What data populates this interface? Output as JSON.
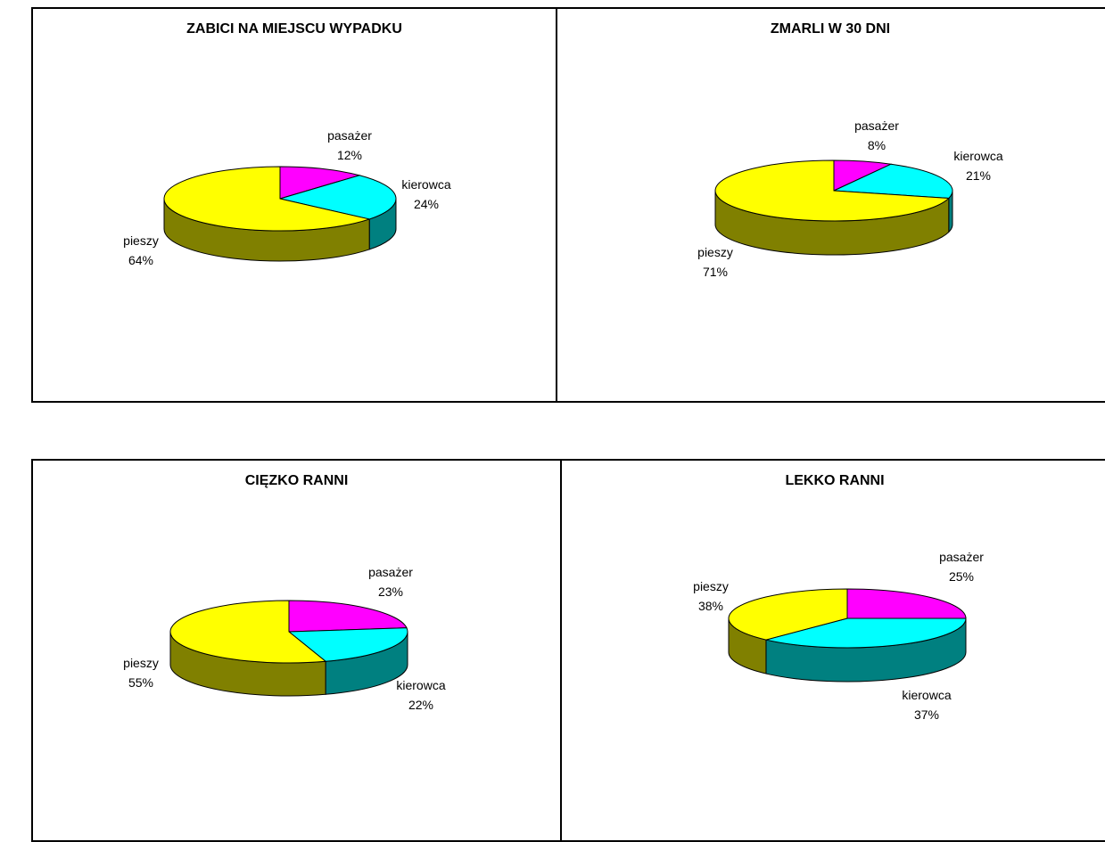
{
  "colors": {
    "pasazer": "#ff00ff",
    "kierowca": "#00ffff",
    "pieszy": "#ffff00",
    "pasazer_side": "#800080",
    "kierowca_side": "#008080",
    "pieszy_side": "#808000"
  },
  "chart_data": [
    {
      "type": "pie",
      "title": "ZABICI NA MIEJSCU WYPADKU",
      "categories": [
        "pasażer",
        "kierowca",
        "pieszy"
      ],
      "values": [
        12,
        24,
        64
      ],
      "labels": [
        "12%",
        "24%",
        "64%"
      ]
    },
    {
      "type": "pie",
      "title": "ZMARLI W 30 DNI",
      "categories": [
        "pasażer",
        "kierowca",
        "pieszy"
      ],
      "values": [
        8,
        21,
        71
      ],
      "labels": [
        "8%",
        "21%",
        "71%"
      ]
    },
    {
      "type": "pie",
      "title": "CIĘZKO RANNI",
      "categories": [
        "pasażer",
        "kierowca",
        "pieszy"
      ],
      "values": [
        23,
        22,
        55
      ],
      "labels": [
        "23%",
        "22%",
        "55%"
      ]
    },
    {
      "type": "pie",
      "title": "LEKKO RANNI",
      "categories": [
        "pasażer",
        "kierowca",
        "pieszy"
      ],
      "values": [
        25,
        37,
        38
      ],
      "labels": [
        "25%",
        "37%",
        "38%"
      ]
    }
  ]
}
